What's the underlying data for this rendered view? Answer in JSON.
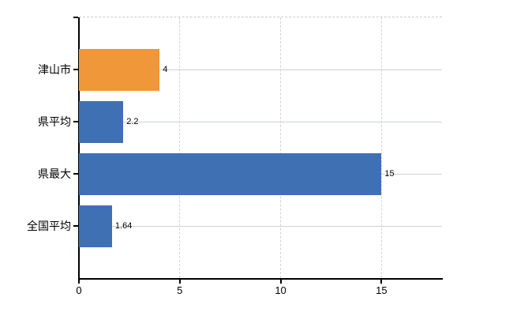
{
  "chart_data": {
    "type": "bar",
    "orientation": "horizontal",
    "title": "",
    "xlabel": "",
    "ylabel": "",
    "categories": [
      "津山市",
      "県平均",
      "県最大",
      "全国平均"
    ],
    "values": [
      4,
      2.2,
      15,
      1.64
    ],
    "value_labels": [
      "4",
      "2.2",
      "15",
      "1.64"
    ],
    "bar_colors": [
      "#EF9739",
      "#3F70B4",
      "#3F70B4",
      "#3F70B4"
    ],
    "x_ticks": [
      0,
      5,
      10,
      15
    ],
    "x_tick_labels": [
      "0",
      "5",
      "10",
      "15"
    ],
    "xlim": [
      0,
      18
    ],
    "grid": true,
    "legend": false
  },
  "colors": {
    "background": "#ffffff",
    "axis": "#000000",
    "h_gridline": "#ccd4cc",
    "v_gridline": "#d6d2d6",
    "top_border": "#c9c9d2",
    "bar_orange": "#EF9739",
    "bar_blue": "#3F70B4",
    "text": "#000000"
  }
}
